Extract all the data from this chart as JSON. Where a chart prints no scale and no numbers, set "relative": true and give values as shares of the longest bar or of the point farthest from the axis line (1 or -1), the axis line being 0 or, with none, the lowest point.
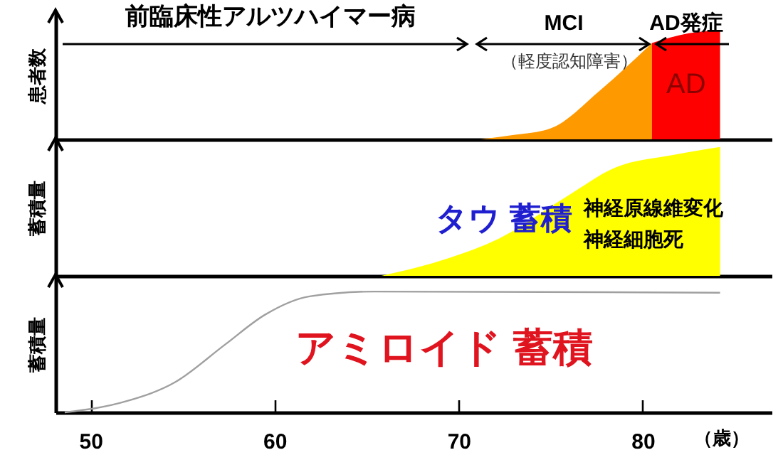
{
  "chart_data": [
    {
      "type": "area",
      "ylabel": "患者数",
      "relative": true,
      "xlim": [
        48.1,
        87.0
      ],
      "series": [
        {
          "color": "#ff9900",
          "x": [
            71.2,
            73.0,
            75.0,
            77.7,
            80.5
          ],
          "values": [
            0,
            0.04,
            0.1,
            0.45,
            0.88
          ]
        },
        {
          "name": "AD",
          "color": "#ff0000",
          "x": [
            80.5,
            82.5,
            84.2
          ],
          "values": [
            0.88,
            0.97,
            1
          ]
        }
      ],
      "annotations": [
        "前臨床性アルツハイマー病",
        "MCI",
        "（軽度認知障害）",
        "AD発症"
      ]
    },
    {
      "type": "area",
      "ylabel": "蓄積量",
      "relative": true,
      "xlim": [
        48.1,
        87.0
      ],
      "series": [
        {
          "color": "#ffff00",
          "x": [
            65.8,
            69.5,
            72.2,
            75.8,
            78.5,
            81.7,
            84.2
          ],
          "values": [
            0,
            0.14,
            0.29,
            0.61,
            0.84,
            0.94,
            1
          ]
        }
      ],
      "annotations": [
        "タウ 蓄積",
        "神経原線維変化",
        "神経細胞死"
      ]
    },
    {
      "type": "line",
      "ylabel": "蓄積量",
      "xlabel": "（歳）",
      "relative": true,
      "xlim": [
        48.1,
        87.0
      ],
      "xticks": [
        50,
        60,
        70,
        80
      ],
      "series": [
        {
          "color": "#a0a0a0",
          "x": [
            48.6,
            51.9,
            54.6,
            57.3,
            59.5,
            61.9,
            65.4,
            84.2
          ],
          "values": [
            0,
            0.09,
            0.25,
            0.56,
            0.81,
            0.96,
            1,
            0.99
          ]
        }
      ],
      "annotations": [
        "アミロイド 蓄積"
      ]
    }
  ]
}
